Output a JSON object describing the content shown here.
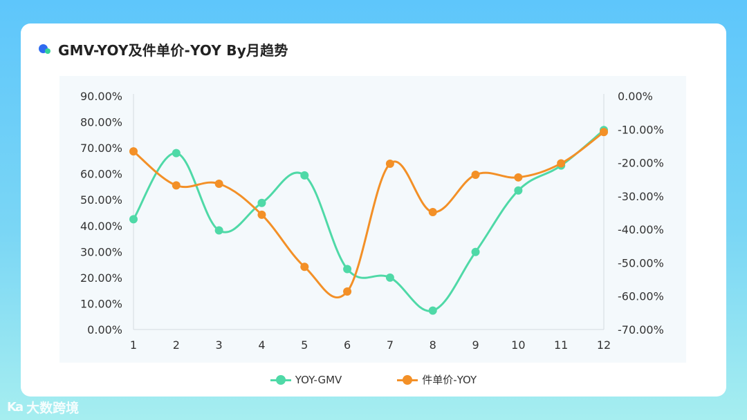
{
  "title": "GMV-YOY及件单价-YOY By月趋势",
  "watermark": {
    "mark": "Ka",
    "text": "大数跨境"
  },
  "legend": [
    {
      "name": "YOY-GMV",
      "color": "#4fd9a7"
    },
    {
      "name": "件单价-YOY",
      "color": "#f39027"
    }
  ],
  "chart_data": {
    "type": "line",
    "x": [
      1,
      2,
      3,
      4,
      5,
      6,
      7,
      8,
      9,
      10,
      11,
      12
    ],
    "y_left": {
      "ylim": [
        0,
        90
      ],
      "ticks": [
        "0.00%",
        "10.00%",
        "20.00%",
        "30.00%",
        "40.00%",
        "50.00%",
        "60.00%",
        "70.00%",
        "80.00%",
        "90.00%"
      ]
    },
    "y_right": {
      "ylim": [
        -70,
        0
      ],
      "ticks": [
        "-70.00%",
        "-60.00%",
        "-50.00%",
        "-40.00%",
        "-30.00%",
        "-20.00%",
        "-10.00%",
        "0.00%"
      ]
    },
    "series": [
      {
        "name": "YOY-GMV",
        "axis": "left",
        "color": "#4fd9a7",
        "values": [
          42.5,
          68.0,
          38.2,
          48.8,
          59.4,
          23.3,
          20.0,
          7.3,
          29.9,
          53.6,
          63.2,
          76.9
        ]
      },
      {
        "name": "件单价-YOY",
        "axis": "right",
        "color": "#f39027",
        "values": [
          -16.6,
          -26.8,
          -26.3,
          -35.6,
          -51.2,
          -58.6,
          -20.3,
          -34.8,
          -23.6,
          -24.4,
          -20.2,
          -10.8
        ]
      }
    ],
    "grid": false,
    "legend_position": "bottom"
  }
}
